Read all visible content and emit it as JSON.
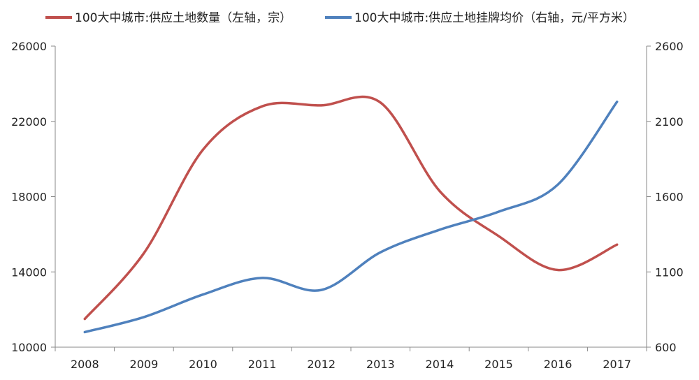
{
  "chart_data": {
    "type": "line",
    "categories": [
      "2008",
      "2009",
      "2010",
      "2011",
      "2012",
      "2013",
      "2014",
      "2015",
      "2016",
      "2017"
    ],
    "series": [
      {
        "name": "100大中城市:供应土地数量（左轴，宗）",
        "axis": "left",
        "color": "#c0504d",
        "values": [
          11500,
          15000,
          20500,
          22800,
          22850,
          23000,
          18300,
          15900,
          14100,
          15450
        ]
      },
      {
        "name": "100大中城市:供应土地挂牌均价（右轴，元/平方米）",
        "axis": "right",
        "color": "#4f81bd",
        "values": [
          700,
          800,
          950,
          1060,
          980,
          1230,
          1380,
          1500,
          1680,
          2230
        ]
      }
    ],
    "y_left": {
      "min": 10000,
      "max": 26000,
      "ticks": [
        "10000",
        "14000",
        "18000",
        "22000",
        "26000"
      ]
    },
    "y_right": {
      "min": 600,
      "max": 2600,
      "ticks": [
        "600",
        "1100",
        "1600",
        "2100",
        "2600"
      ]
    },
    "smooth": true,
    "grid": false,
    "legend_position": "top"
  }
}
